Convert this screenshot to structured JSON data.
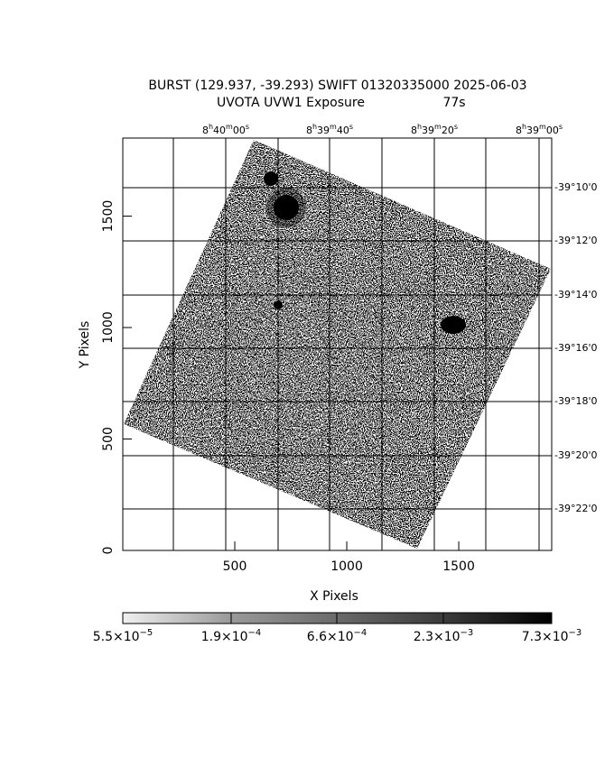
{
  "chart_data": {
    "type": "image",
    "title": "BURST (129.937, -39.293) SWIFT 01320335000 2025-06-03",
    "subtitle": "UVOTA UVW1 Exposure",
    "exposure": "77s",
    "xlabel": "X Pixels",
    "ylabel": "Y Pixels",
    "xlim": [
      0,
      1915
    ],
    "ylim": [
      0,
      1850
    ],
    "xticks": [
      500,
      1000,
      1500
    ],
    "yticks": [
      0,
      500,
      1000,
      1500
    ],
    "ra_labels": [
      [
        "8",
        "h",
        "40",
        "m",
        "00",
        "s"
      ],
      [
        "8",
        "h",
        "39",
        "m",
        "40",
        "s"
      ],
      [
        "8",
        "h",
        "39",
        "m",
        "20",
        "s"
      ],
      [
        "8",
        "h",
        "39",
        "m",
        "00",
        "s"
      ]
    ],
    "dec_labels": [
      "-39°10'0",
      "-39°12'0",
      "-39°14'0",
      "-39°16'0",
      "-39°18'0",
      "-39°20'0",
      "-39°22'0"
    ],
    "colorbar": [
      {
        "base": "5.5×10",
        "exp": "−5"
      },
      {
        "base": "1.9×10",
        "exp": "−4"
      },
      {
        "base": "6.6×10",
        "exp": "−4"
      },
      {
        "base": "2.3×10",
        "exp": "−3"
      },
      {
        "base": "7.3×10",
        "exp": "−3"
      }
    ]
  }
}
